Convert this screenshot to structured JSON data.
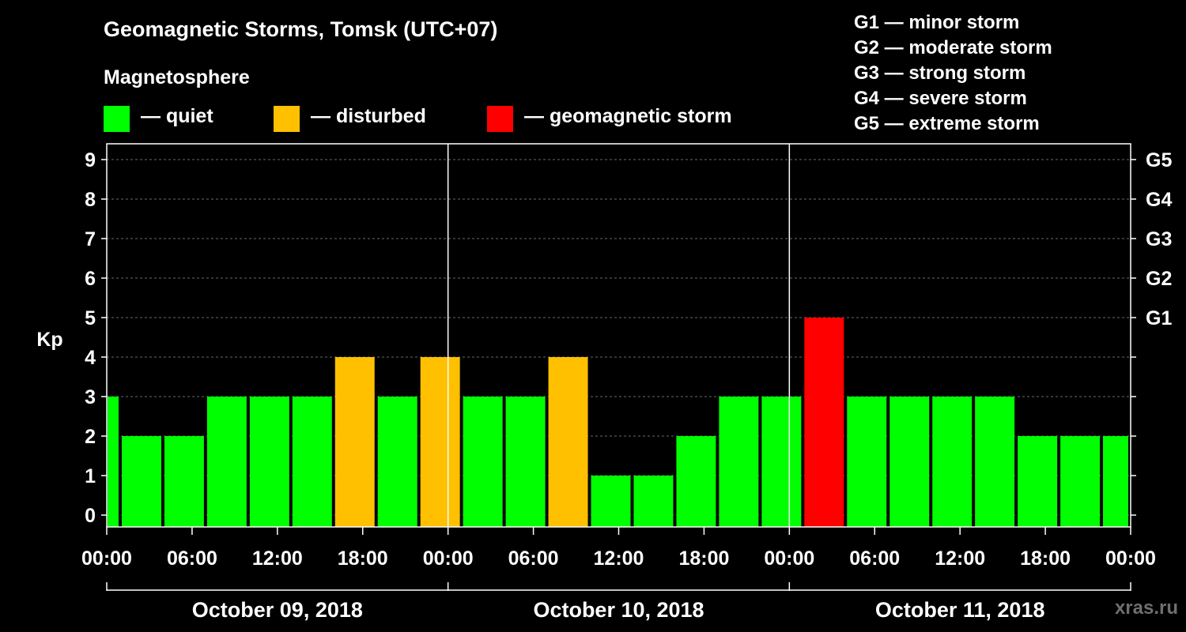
{
  "header": {
    "title": "Geomagnetic Storms, Tomsk (UTC+07)",
    "legend_heading": "Magnetosphere"
  },
  "legend": [
    {
      "label": "— quiet",
      "color": "#00ff00"
    },
    {
      "label": "— disturbed",
      "color": "#ffc000"
    },
    {
      "label": "— geomagnetic storm",
      "color": "#ff0000"
    }
  ],
  "storm_scale": [
    "G1 — minor storm",
    "G2 — moderate storm",
    "G3 — strong storm",
    "G4 — severe storm",
    "G5 — extreme storm"
  ],
  "chart_data": {
    "type": "bar",
    "title": "Geomagnetic Storms, Tomsk (UTC+07)",
    "ylabel": "Kp",
    "xlabel": "",
    "ylim": [
      0,
      9
    ],
    "yticks": [
      "0",
      "1",
      "2",
      "3",
      "4",
      "5",
      "6",
      "7",
      "8",
      "9"
    ],
    "right_axis_labels": [
      {
        "kp": 5,
        "label": "G1"
      },
      {
        "kp": 6,
        "label": "G2"
      },
      {
        "kp": 7,
        "label": "G3"
      },
      {
        "kp": 8,
        "label": "G4"
      },
      {
        "kp": 9,
        "label": "G5"
      }
    ],
    "x_range_hours": [
      0,
      72
    ],
    "xtick_labels": [
      "00:00",
      "06:00",
      "12:00",
      "18:00",
      "00:00",
      "06:00",
      "12:00",
      "18:00",
      "00:00",
      "06:00",
      "12:00",
      "18:00",
      "00:00"
    ],
    "xtick_hours": [
      0,
      6,
      12,
      18,
      24,
      30,
      36,
      42,
      48,
      54,
      60,
      66,
      72
    ],
    "day_labels": [
      "October 09, 2018",
      "October 10, 2018",
      "October 11, 2018"
    ],
    "day_boundaries_hours": [
      24,
      48
    ],
    "bar_start_hours": [
      0,
      1,
      4,
      7,
      10,
      13,
      16,
      19,
      22,
      25,
      28,
      31,
      34,
      37,
      40,
      43,
      46,
      49,
      52,
      55,
      58,
      61,
      64,
      67,
      70
    ],
    "bar_end_hours": [
      1,
      4,
      7,
      10,
      13,
      16,
      19,
      22,
      25,
      28,
      31,
      34,
      37,
      40,
      43,
      46,
      49,
      52,
      55,
      58,
      61,
      64,
      67,
      70,
      72
    ],
    "values": [
      3,
      2,
      2,
      3,
      3,
      3,
      4,
      3,
      4,
      3,
      3,
      4,
      1,
      1,
      2,
      3,
      3,
      5,
      3,
      3,
      3,
      3,
      2,
      2,
      2
    ],
    "levels": [
      "quiet",
      "quiet",
      "quiet",
      "quiet",
      "quiet",
      "quiet",
      "disturbed",
      "quiet",
      "disturbed",
      "quiet",
      "quiet",
      "disturbed",
      "quiet",
      "quiet",
      "quiet",
      "quiet",
      "quiet",
      "storm",
      "quiet",
      "quiet",
      "quiet",
      "quiet",
      "quiet",
      "quiet",
      "quiet"
    ],
    "level_colors": {
      "quiet": "#00ff00",
      "disturbed": "#ffc000",
      "storm": "#ff0000"
    },
    "grid": true
  },
  "watermark": "xras.ru"
}
